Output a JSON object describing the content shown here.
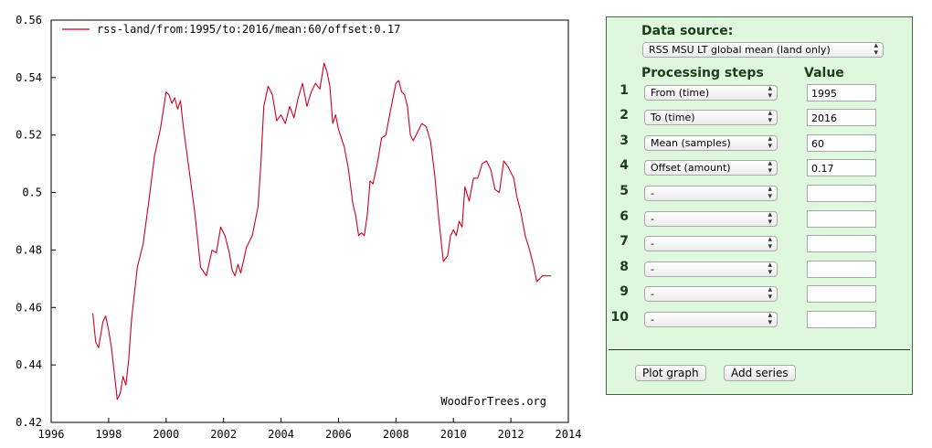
{
  "chart_data": {
    "type": "line",
    "title": "",
    "xlabel": "",
    "ylabel": "",
    "xlim": [
      1996,
      2014
    ],
    "ylim": [
      0.42,
      0.56
    ],
    "x_ticks": [
      1996,
      1998,
      2000,
      2002,
      2004,
      2006,
      2008,
      2010,
      2012,
      2014
    ],
    "y_ticks": [
      0.42,
      0.44,
      0.46,
      0.48,
      0.5,
      0.52,
      0.54,
      0.56
    ],
    "y_tick_labels": [
      "0.42",
      "0.44",
      "0.46",
      "0.48",
      "0.5",
      "0.52",
      "0.54",
      "0.56"
    ],
    "grid": false,
    "legend_position": "top-left",
    "credit": "WoodForTrees.org",
    "series": [
      {
        "name": "rss-land/from:1995/to:2016/mean:60/offset:0.17",
        "color": "#cc0022",
        "x": [
          1997.45,
          1997.55,
          1997.65,
          1997.8,
          1997.9,
          1998.0,
          1998.1,
          1998.2,
          1998.3,
          1998.4,
          1998.5,
          1998.6,
          1998.7,
          1998.8,
          1999.0,
          1999.2,
          1999.4,
          1999.6,
          1999.8,
          2000.0,
          2000.1,
          2000.2,
          2000.3,
          2000.4,
          2000.5,
          2000.6,
          2000.8,
          2001.0,
          2001.2,
          2001.4,
          2001.6,
          2001.75,
          2001.9,
          2002.05,
          2002.2,
          2002.3,
          2002.4,
          2002.5,
          2002.6,
          2002.8,
          2003.0,
          2003.2,
          2003.3,
          2003.4,
          2003.55,
          2003.7,
          2003.85,
          2004.0,
          2004.15,
          2004.3,
          2004.45,
          2004.6,
          2004.75,
          2004.9,
          2005.05,
          2005.2,
          2005.35,
          2005.5,
          2005.6,
          2005.7,
          2005.8,
          2005.9,
          2006.0,
          2006.2,
          2006.35,
          2006.5,
          2006.6,
          2006.7,
          2006.8,
          2006.9,
          2007.0,
          2007.1,
          2007.2,
          2007.35,
          2007.5,
          2007.65,
          2007.8,
          2008.0,
          2008.1,
          2008.2,
          2008.3,
          2008.4,
          2008.5,
          2008.6,
          2008.75,
          2008.9,
          2009.05,
          2009.2,
          2009.35,
          2009.5,
          2009.65,
          2009.8,
          2009.9,
          2010.0,
          2010.1,
          2010.2,
          2010.3,
          2010.4,
          2010.55,
          2010.7,
          2010.85,
          2011.0,
          2011.15,
          2011.3,
          2011.45,
          2011.6,
          2011.75,
          2011.9,
          2012.0,
          2012.1,
          2012.2,
          2012.35,
          2012.5,
          2012.65,
          2012.8,
          2012.9,
          2013.0,
          2013.1,
          2013.2,
          2013.3,
          2013.4
        ],
        "y": [
          0.458,
          0.448,
          0.446,
          0.455,
          0.457,
          0.452,
          0.446,
          0.437,
          0.428,
          0.43,
          0.436,
          0.433,
          0.442,
          0.456,
          0.474,
          0.482,
          0.497,
          0.513,
          0.522,
          0.535,
          0.534,
          0.531,
          0.533,
          0.529,
          0.532,
          0.523,
          0.508,
          0.493,
          0.474,
          0.471,
          0.48,
          0.479,
          0.488,
          0.485,
          0.479,
          0.473,
          0.471,
          0.475,
          0.472,
          0.481,
          0.485,
          0.495,
          0.51,
          0.53,
          0.537,
          0.534,
          0.525,
          0.527,
          0.524,
          0.53,
          0.526,
          0.533,
          0.538,
          0.53,
          0.535,
          0.538,
          0.536,
          0.545,
          0.542,
          0.537,
          0.524,
          0.527,
          0.522,
          0.516,
          0.508,
          0.496,
          0.492,
          0.485,
          0.486,
          0.485,
          0.492,
          0.504,
          0.503,
          0.51,
          0.519,
          0.52,
          0.528,
          0.538,
          0.539,
          0.535,
          0.534,
          0.53,
          0.52,
          0.518,
          0.521,
          0.524,
          0.523,
          0.518,
          0.506,
          0.49,
          0.476,
          0.478,
          0.485,
          0.487,
          0.485,
          0.49,
          0.488,
          0.502,
          0.497,
          0.505,
          0.505,
          0.51,
          0.511,
          0.508,
          0.501,
          0.5,
          0.511,
          0.509,
          0.507,
          0.505,
          0.499,
          0.493,
          0.485,
          0.48,
          0.474,
          0.469,
          0.47,
          0.471,
          0.471,
          0.471,
          0.471
        ]
      }
    ]
  },
  "panel": {
    "data_source_label": "Data source:",
    "data_source_value": "RSS MSU LT global mean (land only)",
    "processing_steps_label": "Processing steps",
    "value_label": "Value",
    "steps": [
      {
        "num": "1",
        "operation": "From (time)",
        "value": "1995"
      },
      {
        "num": "2",
        "operation": "To (time)",
        "value": "2016"
      },
      {
        "num": "3",
        "operation": "Mean (samples)",
        "value": "60"
      },
      {
        "num": "4",
        "operation": "Offset (amount)",
        "value": "0.17"
      },
      {
        "num": "5",
        "operation": "-",
        "value": ""
      },
      {
        "num": "6",
        "operation": "-",
        "value": ""
      },
      {
        "num": "7",
        "operation": "-",
        "value": ""
      },
      {
        "num": "8",
        "operation": "-",
        "value": ""
      },
      {
        "num": "9",
        "operation": "-",
        "value": ""
      },
      {
        "num": "10",
        "operation": "-",
        "value": ""
      }
    ],
    "plot_button": "Plot graph",
    "add_series_button": "Add series"
  }
}
